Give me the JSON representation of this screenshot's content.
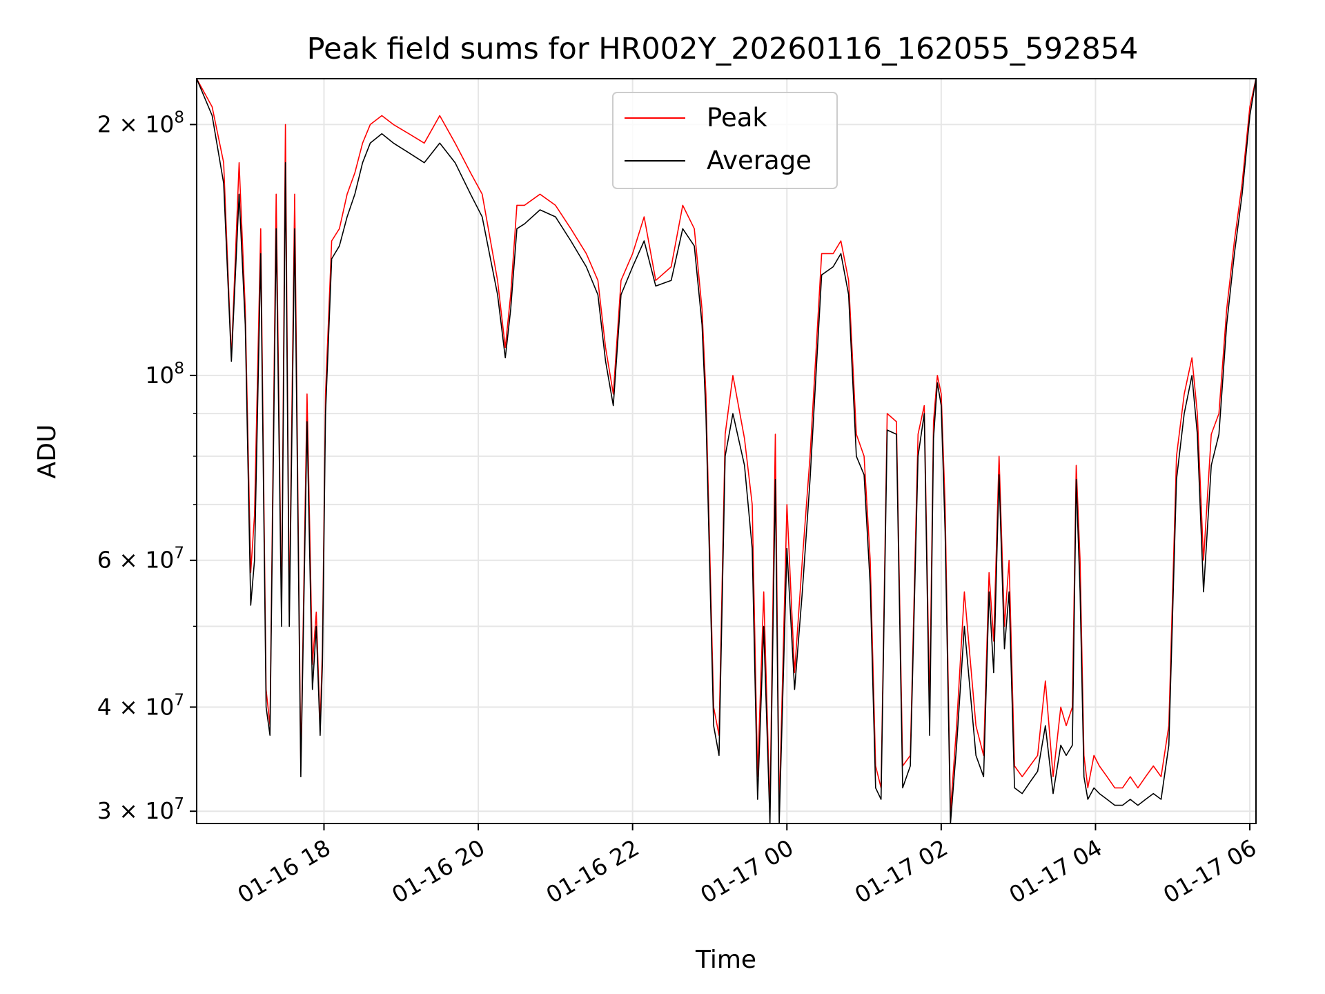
{
  "chart_data": {
    "type": "line",
    "title": "Peak field sums for HR002Y_20260116_162055_592854",
    "xlabel": "Time",
    "ylabel": "ADU",
    "yscale": "log",
    "ylim": [
      29000000,
      227000000
    ],
    "xlim_hours": [
      16.35,
      30.08
    ],
    "grid": true,
    "legend_position": "top-center",
    "x_ticks": [
      {
        "hour": 18,
        "label": "01-16 18"
      },
      {
        "hour": 20,
        "label": "01-16 20"
      },
      {
        "hour": 22,
        "label": "01-16 22"
      },
      {
        "hour": 24,
        "label": "01-17 00"
      },
      {
        "hour": 26,
        "label": "01-17 02"
      },
      {
        "hour": 28,
        "label": "01-17 04"
      },
      {
        "hour": 30,
        "label": "01-17 06"
      }
    ],
    "y_major_ticks": [
      {
        "value": 30000000,
        "mantissa": "3",
        "exponent": "7"
      },
      {
        "value": 40000000,
        "mantissa": "4",
        "exponent": "7"
      },
      {
        "value": 60000000,
        "mantissa": "6",
        "exponent": "7"
      },
      {
        "value": 100000000,
        "mantissa": "",
        "exponent": "8"
      },
      {
        "value": 200000000,
        "mantissa": "2",
        "exponent": "8"
      }
    ],
    "y_minor_ticks": [
      50000000,
      70000000,
      80000000,
      90000000
    ],
    "series": [
      {
        "name": "Peak",
        "color": "#ff0000",
        "x_hours": [
          16.35,
          16.55,
          16.7,
          16.8,
          16.9,
          16.98,
          17.05,
          17.1,
          17.18,
          17.25,
          17.3,
          17.38,
          17.45,
          17.5,
          17.55,
          17.62,
          17.7,
          17.78,
          17.85,
          17.9,
          17.95,
          17.98,
          18.02,
          18.1,
          18.2,
          18.3,
          18.4,
          18.5,
          18.6,
          18.75,
          18.9,
          19.1,
          19.3,
          19.5,
          19.7,
          19.9,
          20.05,
          20.25,
          20.35,
          20.42,
          20.5,
          20.6,
          20.8,
          21.0,
          21.2,
          21.4,
          21.55,
          21.65,
          21.75,
          21.85,
          22.0,
          22.15,
          22.3,
          22.5,
          22.65,
          22.8,
          22.9,
          22.95,
          23.05,
          23.12,
          23.2,
          23.3,
          23.45,
          23.55,
          23.62,
          23.7,
          23.78,
          23.85,
          23.9,
          24.0,
          24.1,
          24.2,
          24.3,
          24.45,
          24.6,
          24.7,
          24.8,
          24.9,
          25.0,
          25.08,
          25.15,
          25.22,
          25.3,
          25.42,
          25.5,
          25.6,
          25.7,
          25.78,
          25.85,
          25.9,
          25.95,
          26.0,
          26.05,
          26.12,
          26.2,
          26.3,
          26.45,
          26.55,
          26.62,
          26.68,
          26.75,
          26.82,
          26.88,
          26.95,
          27.05,
          27.15,
          27.25,
          27.35,
          27.45,
          27.55,
          27.62,
          27.7,
          27.75,
          27.8,
          27.85,
          27.9,
          27.98,
          28.05,
          28.15,
          28.25,
          28.35,
          28.45,
          28.55,
          28.65,
          28.75,
          28.85,
          28.95,
          29.05,
          29.15,
          29.25,
          29.32,
          29.4,
          29.5,
          29.6,
          29.7,
          29.8,
          29.9,
          30.0,
          30.08
        ],
        "values": [
          227000000,
          210000000,
          180000000,
          105000000,
          180000000,
          120000000,
          58000000,
          68000000,
          150000000,
          42000000,
          38000000,
          165000000,
          52000000,
          200000000,
          52000000,
          165000000,
          34000000,
          95000000,
          45000000,
          52000000,
          38000000,
          47000000,
          95000000,
          145000000,
          150000000,
          165000000,
          175000000,
          190000000,
          200000000,
          205000000,
          200000000,
          195000000,
          190000000,
          205000000,
          190000000,
          175000000,
          165000000,
          130000000,
          108000000,
          125000000,
          160000000,
          160000000,
          165000000,
          160000000,
          150000000,
          140000000,
          130000000,
          108000000,
          95000000,
          130000000,
          140000000,
          155000000,
          130000000,
          135000000,
          160000000,
          150000000,
          120000000,
          95000000,
          40000000,
          37000000,
          85000000,
          100000000,
          84000000,
          70000000,
          33000000,
          55000000,
          30000000,
          85000000,
          30000000,
          70000000,
          44000000,
          60000000,
          80000000,
          140000000,
          140000000,
          145000000,
          130000000,
          85000000,
          80000000,
          60000000,
          34000000,
          32000000,
          90000000,
          88000000,
          34000000,
          35000000,
          85000000,
          92000000,
          40000000,
          88000000,
          100000000,
          95000000,
          70000000,
          30000000,
          38000000,
          55000000,
          38000000,
          35000000,
          58000000,
          48000000,
          80000000,
          50000000,
          60000000,
          34000000,
          33000000,
          34000000,
          35000000,
          43000000,
          33000000,
          40000000,
          38000000,
          40000000,
          78000000,
          60000000,
          35000000,
          32000000,
          35000000,
          34000000,
          33000000,
          32000000,
          32000000,
          33000000,
          32000000,
          33000000,
          34000000,
          33000000,
          38000000,
          80000000,
          95000000,
          105000000,
          90000000,
          60000000,
          85000000,
          90000000,
          120000000,
          145000000,
          170000000,
          210000000,
          227000000
        ]
      },
      {
        "name": "Average",
        "color": "#000000",
        "x_hours": [
          16.35,
          16.55,
          16.7,
          16.8,
          16.9,
          16.98,
          17.05,
          17.1,
          17.18,
          17.25,
          17.3,
          17.38,
          17.45,
          17.5,
          17.55,
          17.62,
          17.7,
          17.78,
          17.85,
          17.9,
          17.95,
          17.98,
          18.02,
          18.1,
          18.2,
          18.3,
          18.4,
          18.5,
          18.6,
          18.75,
          18.9,
          19.1,
          19.3,
          19.5,
          19.7,
          19.9,
          20.05,
          20.25,
          20.35,
          20.42,
          20.5,
          20.6,
          20.8,
          21.0,
          21.2,
          21.4,
          21.55,
          21.65,
          21.75,
          21.85,
          22.0,
          22.15,
          22.3,
          22.5,
          22.65,
          22.8,
          22.9,
          22.95,
          23.05,
          23.12,
          23.2,
          23.3,
          23.45,
          23.55,
          23.62,
          23.7,
          23.78,
          23.85,
          23.9,
          24.0,
          24.1,
          24.2,
          24.3,
          24.45,
          24.6,
          24.7,
          24.8,
          24.9,
          25.0,
          25.08,
          25.15,
          25.22,
          25.3,
          25.42,
          25.5,
          25.6,
          25.7,
          25.78,
          25.85,
          25.9,
          25.95,
          26.0,
          26.05,
          26.12,
          26.2,
          26.3,
          26.45,
          26.55,
          26.62,
          26.68,
          26.75,
          26.82,
          26.88,
          26.95,
          27.05,
          27.15,
          27.25,
          27.35,
          27.45,
          27.55,
          27.62,
          27.7,
          27.75,
          27.8,
          27.85,
          27.9,
          27.98,
          28.05,
          28.15,
          28.25,
          28.35,
          28.45,
          28.55,
          28.65,
          28.75,
          28.85,
          28.95,
          29.05,
          29.15,
          29.25,
          29.32,
          29.4,
          29.5,
          29.6,
          29.7,
          29.8,
          29.9,
          30.0,
          30.08
        ],
        "values": [
          227000000,
          205000000,
          170000000,
          104000000,
          165000000,
          115000000,
          53000000,
          60000000,
          140000000,
          40000000,
          37000000,
          150000000,
          50000000,
          180000000,
          50000000,
          150000000,
          33000000,
          88000000,
          42000000,
          50000000,
          37000000,
          45000000,
          90000000,
          138000000,
          143000000,
          155000000,
          165000000,
          180000000,
          190000000,
          195000000,
          190000000,
          185000000,
          180000000,
          190000000,
          180000000,
          165000000,
          155000000,
          125000000,
          105000000,
          120000000,
          150000000,
          152000000,
          158000000,
          155000000,
          145000000,
          135000000,
          125000000,
          104000000,
          92000000,
          125000000,
          135000000,
          145000000,
          128000000,
          130000000,
          150000000,
          143000000,
          115000000,
          90000000,
          38000000,
          35000000,
          80000000,
          90000000,
          78000000,
          62000000,
          31000000,
          50000000,
          29000000,
          75000000,
          29000000,
          62000000,
          42000000,
          55000000,
          75000000,
          132000000,
          135000000,
          140000000,
          125000000,
          80000000,
          76000000,
          56000000,
          32000000,
          31000000,
          86000000,
          85000000,
          32000000,
          34000000,
          80000000,
          90000000,
          37000000,
          84000000,
          98000000,
          92000000,
          65000000,
          29000000,
          36000000,
          50000000,
          35000000,
          33000000,
          55000000,
          44000000,
          76000000,
          47000000,
          55000000,
          32000000,
          31500000,
          32500000,
          33500000,
          38000000,
          31500000,
          36000000,
          35000000,
          36000000,
          75000000,
          55000000,
          33000000,
          31000000,
          32000000,
          31500000,
          31000000,
          30500000,
          30500000,
          31000000,
          30500000,
          31000000,
          31500000,
          31000000,
          36000000,
          75000000,
          90000000,
          100000000,
          85000000,
          55000000,
          78000000,
          85000000,
          115000000,
          140000000,
          165000000,
          205000000,
          227000000
        ]
      }
    ]
  }
}
